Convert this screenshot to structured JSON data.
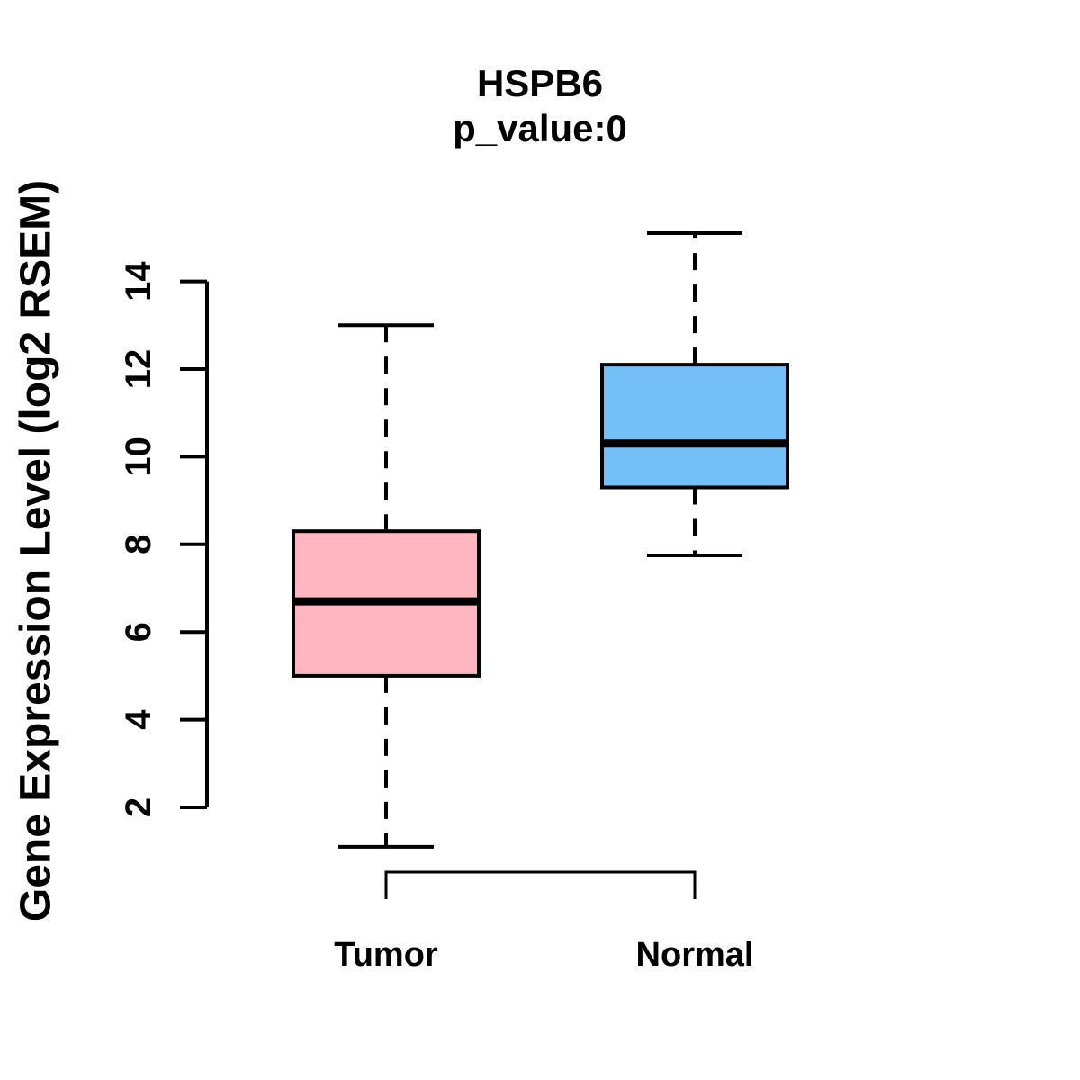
{
  "figure": {
    "background_color": "#FFFFFF",
    "text_color": "#000000"
  },
  "chart_data": {
    "type": "boxplot",
    "title": "HSPB6",
    "subtitle": "p_value:0",
    "ylabel": "Gene Expression Level (log2 RSEM)",
    "xlabel": "",
    "categories": [
      "Tumor",
      "Normal"
    ],
    "yticks": [
      2,
      4,
      6,
      8,
      10,
      12,
      14
    ],
    "ylim": [
      1.0,
      15.3
    ],
    "grid": false,
    "legend": "none",
    "axis_color": "#000000",
    "median_color": "#000000",
    "whisker_style": "dashed",
    "groups": [
      {
        "label": "Tumor",
        "fill_color": "#FFB6C1",
        "whisker_low": 1.1,
        "q1": 5.0,
        "median": 6.7,
        "q3": 8.3,
        "whisker_high": 13.0,
        "outliers": []
      },
      {
        "label": "Normal",
        "fill_color": "#73BFF8",
        "whisker_low": 7.75,
        "q1": 9.3,
        "median": 10.3,
        "q3": 12.1,
        "whisker_high": 15.1,
        "outliers": []
      }
    ],
    "significance_bracket": {
      "from": "Tumor",
      "to": "Normal",
      "position": "below-plot"
    }
  }
}
